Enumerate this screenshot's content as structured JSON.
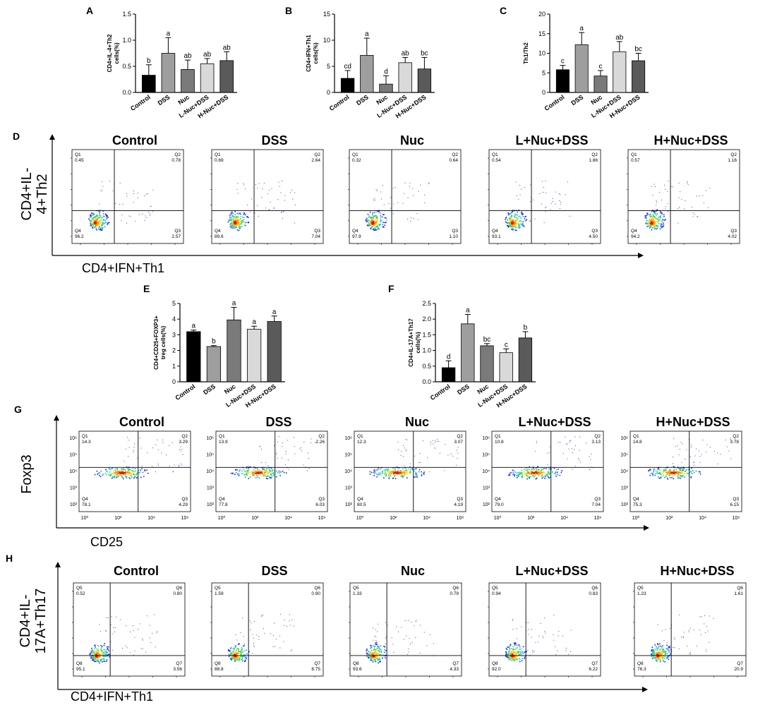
{
  "chart_data": [
    {
      "panel": "A",
      "type": "bar",
      "ylabel": [
        "CD4+IL-4+Th2",
        "cells(%)"
      ],
      "categories": [
        "Control",
        "DSS",
        "Nuc",
        "L-Nuc+DSS",
        "H-Nuc+DSS"
      ],
      "values": [
        0.33,
        0.75,
        0.44,
        0.55,
        0.61
      ],
      "errors": [
        0.2,
        0.3,
        0.18,
        0.1,
        0.17
      ],
      "letters": [
        "b",
        "a",
        "ab",
        "ab",
        "ab"
      ],
      "ylim": [
        0,
        1.5
      ],
      "yticks": [
        "0.0",
        "0.5",
        "1.0",
        "1.5"
      ],
      "ytick_values": [
        0,
        0.5,
        1.0,
        1.5
      ]
    },
    {
      "panel": "B",
      "type": "bar",
      "ylabel": [
        "CD4+IFN+Th1",
        "cells(%)"
      ],
      "categories": [
        "Control",
        "DSS",
        "Nuc",
        "L-Nuc+DSS",
        "H-Nuc+DSS"
      ],
      "values": [
        2.7,
        7.1,
        1.6,
        5.7,
        4.5
      ],
      "errors": [
        1.5,
        3.3,
        1.6,
        1.0,
        2.2
      ],
      "letters": [
        "cd",
        "a",
        "d",
        "ab",
        "bc"
      ],
      "ylim": [
        0,
        15
      ],
      "yticks": [
        "0",
        "5",
        "10",
        "15"
      ],
      "ytick_values": [
        0,
        5,
        10,
        15
      ]
    },
    {
      "panel": "C",
      "type": "bar",
      "ylabel": [
        "Th1/Th2"
      ],
      "categories": [
        "Control",
        "DSS",
        "Nuc",
        "L-Nuc+DSS",
        "H-Nuc+DSS"
      ],
      "values": [
        5.8,
        12.2,
        4.2,
        10.4,
        8.1
      ],
      "errors": [
        1.1,
        3.1,
        1.4,
        2.6,
        1.9
      ],
      "letters": [
        "c",
        "a",
        "c",
        "ab",
        "bc"
      ],
      "ylim": [
        0,
        20
      ],
      "yticks": [
        "0",
        "5",
        "10",
        "15",
        "20"
      ],
      "ytick_values": [
        0,
        5,
        10,
        15,
        20
      ]
    },
    {
      "panel": "E",
      "type": "bar",
      "ylabel": [
        "CD4+CD25+FOXP3+",
        "treg cells(%)"
      ],
      "categories": [
        "Control",
        "DSS",
        "Nuc",
        "L-Nuc+DSS",
        "H-Nuc+DSS"
      ],
      "values": [
        3.2,
        2.25,
        3.95,
        3.35,
        3.85
      ],
      "errors": [
        0.1,
        0.06,
        0.8,
        0.2,
        0.35
      ],
      "letters": [
        "a",
        "b",
        "a",
        "a",
        "a"
      ],
      "ylim": [
        0,
        5
      ],
      "yticks": [
        "0",
        "1",
        "2",
        "3",
        "4",
        "5"
      ],
      "ytick_values": [
        0,
        1,
        2,
        3,
        4,
        5
      ]
    },
    {
      "panel": "F",
      "type": "bar",
      "ylabel": [
        "CD4+IL-17A+Th17",
        "cells(%)"
      ],
      "categories": [
        "Control",
        "DSS",
        "Nuc",
        "L-Nuc+DSS",
        "H-Nuc+DSS"
      ],
      "values": [
        0.45,
        1.85,
        1.15,
        0.93,
        1.4
      ],
      "errors": [
        0.22,
        0.3,
        0.07,
        0.12,
        0.2
      ],
      "letters": [
        "d",
        "a",
        "bc",
        "c",
        "b"
      ],
      "ylim": [
        0,
        2.5
      ],
      "yticks": [
        "0.0",
        "0.5",
        "1.0",
        "1.5",
        "2.0",
        "2.5"
      ],
      "ytick_values": [
        0,
        0.5,
        1.0,
        1.5,
        2.0,
        2.5
      ]
    }
  ],
  "bar_colors": [
    "#000000",
    "#9e9e9e",
    "#7a7a7a",
    "#d9d9d9",
    "#5a5a5a"
  ],
  "flow_rows": [
    {
      "panel": "D",
      "ylabel": [
        "CD4+IL-",
        "4+Th2"
      ],
      "xlabel": "CD4+IFN+Th1",
      "titles": [
        "Control",
        "DSS",
        "Nuc",
        "L+Nuc+DSS",
        "H+Nuc+DSS"
      ],
      "quad_names": [
        "Q1",
        "Q2",
        "Q3",
        "Q4"
      ],
      "quads": [
        [
          "0.45",
          "0.78",
          "2.57",
          "96.2"
        ],
        [
          "0.69",
          "2.64",
          "7.04",
          "89.6"
        ],
        [
          "0.32",
          "0.64",
          "1.10",
          "97.9"
        ],
        [
          "0.54",
          "1.86",
          "4.50",
          "93.1"
        ],
        [
          "0.57",
          "1.16",
          "4.02",
          "94.2"
        ]
      ]
    },
    {
      "panel": "G",
      "ylabel": [
        "Foxp3"
      ],
      "xlabel": "CD25",
      "titles": [
        "Control",
        "DSS",
        "Nuc",
        "L+Nuc+DSS",
        "H+Nuc+DSS"
      ],
      "quad_names": [
        "Q1",
        "Q2",
        "Q3",
        "Q4"
      ],
      "quads": [
        [
          "14.3",
          "3.29",
          "4.29",
          "78.1"
        ],
        [
          "13.9",
          "2.26",
          "6.03",
          "77.8"
        ],
        [
          "12.3",
          "3.07",
          "4.19",
          "80.5"
        ],
        [
          "10.8",
          "3.13",
          "7.04",
          "79.0"
        ],
        [
          "14.8",
          "3.78",
          "6.15",
          "75.3"
        ]
      ],
      "yticks": [
        "10⁶",
        "10⁵",
        "10⁴",
        "10³",
        "10²"
      ],
      "xticks": [
        "10⁰",
        "10²",
        "10⁴",
        "10⁶"
      ]
    },
    {
      "panel": "H",
      "ylabel": [
        "CD4+IL-",
        "17A+Th17"
      ],
      "xlabel": "CD4+IFN+Th1",
      "titles": [
        "Control",
        "DSS",
        "Nuc",
        "L+Nuc+DSS",
        "H+Nuc+DSS"
      ],
      "quad_names": [
        "Q5",
        "Q6",
        "Q7",
        "Q8"
      ],
      "quads": [
        [
          "0.52",
          "0.80",
          "3.56",
          "95.1"
        ],
        [
          "1.59",
          "0.90",
          "8.75",
          "88.8"
        ],
        [
          "1.33",
          "0.79",
          "4.33",
          "93.6"
        ],
        [
          "0.94",
          "0.83",
          "6.22",
          "92.0"
        ],
        [
          "1.23",
          "1.61",
          "20.9",
          "76.3"
        ]
      ]
    }
  ]
}
